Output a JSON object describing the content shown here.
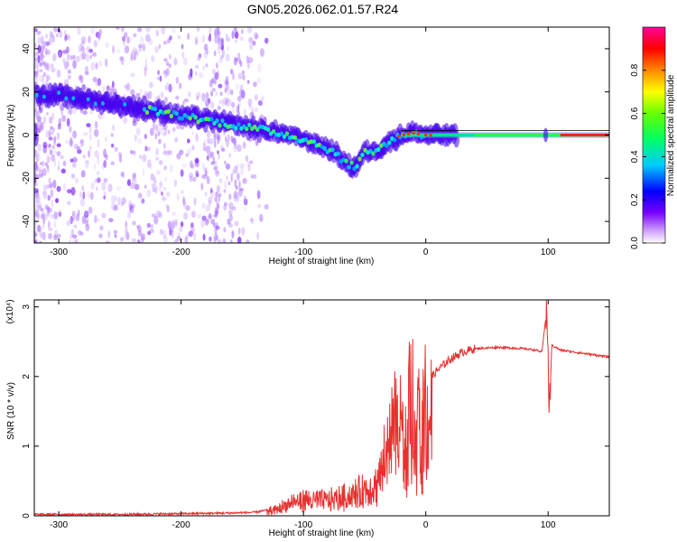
{
  "title": "GN05.2026.062.01.57.R24",
  "chart_data": [
    {
      "type": "heatmap",
      "name": "spectrogram",
      "xlabel": "Height of straight line (km)",
      "ylabel": "Frequency (Hz)",
      "xlim": [
        -320,
        150
      ],
      "ylim": [
        -50,
        50
      ],
      "x_ticks": [
        -300,
        -200,
        -100,
        0,
        100
      ],
      "x_tick_labels": [
        "-300",
        "-200",
        "-100",
        "0",
        "100"
      ],
      "y_ticks": [
        -40,
        -20,
        0,
        20,
        40
      ],
      "y_tick_labels": [
        "-40",
        "-20",
        "0",
        "20",
        "40"
      ],
      "ridge": [
        {
          "x": -318,
          "y": 19
        },
        {
          "x": -300,
          "y": 18
        },
        {
          "x": -280,
          "y": 17
        },
        {
          "x": -260,
          "y": 15
        },
        {
          "x": -240,
          "y": 13
        },
        {
          "x": -220,
          "y": 11
        },
        {
          "x": -200,
          "y": 9
        },
        {
          "x": -180,
          "y": 7
        },
        {
          "x": -160,
          "y": 5
        },
        {
          "x": -140,
          "y": 3
        },
        {
          "x": -120,
          "y": 1
        },
        {
          "x": -100,
          "y": -2
        },
        {
          "x": -85,
          "y": -5
        },
        {
          "x": -75,
          "y": -8
        },
        {
          "x": -65,
          "y": -13
        },
        {
          "x": -58,
          "y": -15
        },
        {
          "x": -50,
          "y": -8
        },
        {
          "x": -40,
          "y": -7
        },
        {
          "x": -30,
          "y": -3
        },
        {
          "x": -20,
          "y": 0
        },
        {
          "x": -10,
          "y": 1
        },
        {
          "x": 0,
          "y": 0
        },
        {
          "x": 20,
          "y": 0
        },
        {
          "x": 60,
          "y": 0
        },
        {
          "x": 100,
          "y": 0
        },
        {
          "x": 150,
          "y": 0
        }
      ],
      "colorbar": {
        "label": "Normalized spectral amplitude",
        "range": [
          0,
          1
        ],
        "ticks": [
          0.0,
          0.2,
          0.4,
          0.6,
          0.8
        ],
        "tick_labels": [
          "0.0",
          "0.2",
          "0.4",
          "0.6",
          "0.8"
        ],
        "colors": [
          "#ffffff",
          "#9933ff",
          "#3300ff",
          "#00ccff",
          "#00ff66",
          "#ccff00",
          "#ff9900",
          "#ff0000",
          "#ff00aa"
        ]
      }
    },
    {
      "type": "line",
      "name": "snr",
      "xlabel": "Height of straight line (km)",
      "ylabel": "SNR (10 * v/v)",
      "multiplier": "(x10⁴)",
      "xlim": [
        -320,
        150
      ],
      "ylim": [
        0,
        3.1
      ],
      "x_ticks": [
        -300,
        -200,
        -100,
        0,
        100
      ],
      "x_tick_labels": [
        "-300",
        "-200",
        "-100",
        "0",
        "100"
      ],
      "y_ticks": [
        0,
        1,
        2,
        3
      ],
      "y_tick_labels": [
        "0",
        "1",
        "2",
        "3"
      ],
      "color": "#e83030",
      "series": [
        {
          "x": -320,
          "y": 0.02
        },
        {
          "x": -250,
          "y": 0.02
        },
        {
          "x": -200,
          "y": 0.03
        },
        {
          "x": -160,
          "y": 0.04
        },
        {
          "x": -140,
          "y": 0.05
        },
        {
          "x": -130,
          "y": 0.08
        },
        {
          "x": -120,
          "y": 0.15
        },
        {
          "x": -110,
          "y": 0.25
        },
        {
          "x": -100,
          "y": 0.3
        },
        {
          "x": -90,
          "y": 0.3
        },
        {
          "x": -80,
          "y": 0.3
        },
        {
          "x": -70,
          "y": 0.35
        },
        {
          "x": -60,
          "y": 0.4
        },
        {
          "x": -50,
          "y": 0.5
        },
        {
          "x": -40,
          "y": 0.6
        },
        {
          "x": -35,
          "y": 0.9
        },
        {
          "x": -30,
          "y": 1.4
        },
        {
          "x": -25,
          "y": 1.8
        },
        {
          "x": -20,
          "y": 1.6
        },
        {
          "x": -15,
          "y": 1.2
        },
        {
          "x": -10,
          "y": 1.4
        },
        {
          "x": -5,
          "y": 1.7
        },
        {
          "x": 0,
          "y": 1.9
        },
        {
          "x": 10,
          "y": 2.1
        },
        {
          "x": 20,
          "y": 2.25
        },
        {
          "x": 30,
          "y": 2.35
        },
        {
          "x": 40,
          "y": 2.4
        },
        {
          "x": 60,
          "y": 2.42
        },
        {
          "x": 80,
          "y": 2.4
        },
        {
          "x": 90,
          "y": 2.38
        },
        {
          "x": 95,
          "y": 2.35
        },
        {
          "x": 99,
          "y": 3.0
        },
        {
          "x": 101,
          "y": 1.5
        },
        {
          "x": 103,
          "y": 2.45
        },
        {
          "x": 110,
          "y": 2.38
        },
        {
          "x": 130,
          "y": 2.33
        },
        {
          "x": 150,
          "y": 2.28
        }
      ]
    }
  ]
}
